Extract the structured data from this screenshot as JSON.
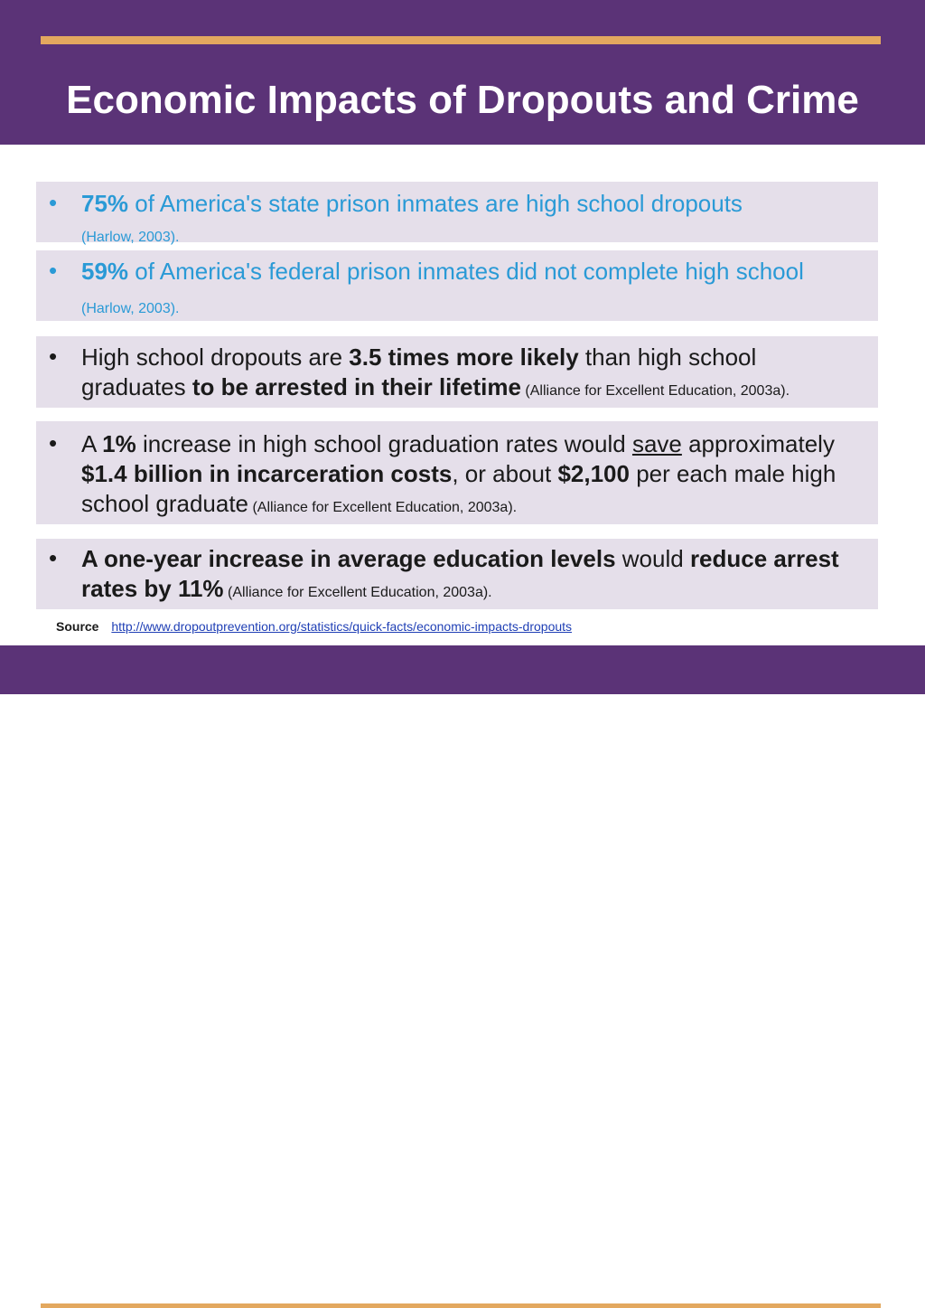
{
  "slide": {
    "title": "Economic Impacts of Dropouts and Crime",
    "bullet_glyph": "•",
    "bullets": [
      {
        "stat": "75%",
        "text": " of America's state prison inmates are high school dropouts",
        "citation": "(Harlow, 2003)."
      },
      {
        "stat": "59%",
        "text": " of America's federal prison inmates did not complete high school",
        "citation": " (Harlow, 2003)."
      },
      {
        "t1": "High school dropouts are ",
        "b1": "3.5 times more likely",
        "t2": " than high school graduates ",
        "b2": "to be arrested in their lifetime",
        "citation": " (Alliance for Excellent Education, 2003a)."
      },
      {
        "t1": "A ",
        "b1": "1%",
        "t2": " increase in high school graduation rates would ",
        "u1": "save",
        "t3": " approximately ",
        "b2": "$1.4 billion in incarceration costs",
        "t4": ", or about ",
        "b3": "$2,100",
        "t5": " per each male high school graduate",
        "citation": " (Alliance for Excellent Education, 2003a)."
      },
      {
        "b1": "A one-year increase in average education levels",
        "t1": " would ",
        "b2": "reduce arrest rates by 11%",
        "citation": " (Alliance for Excellent Education, 2003a)."
      }
    ],
    "source": {
      "label": "Source",
      "url": "http://www.dropoutprevention.org/statistics/quick-facts/economic-impacts-dropouts"
    },
    "colors": {
      "header_bg": "#5b3377",
      "gold_accent": "#e3a85f",
      "box_bg": "#e5dfea",
      "highlight_text": "#2a9ad6",
      "body_text": "#1a1a1a",
      "link": "#1f3fb5"
    }
  }
}
